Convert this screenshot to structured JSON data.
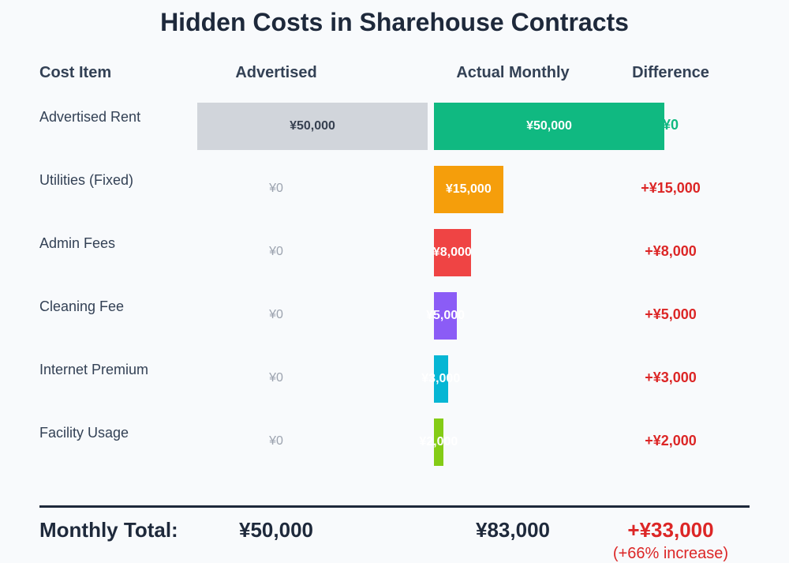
{
  "title": "Hidden Costs in Sharehouse Contracts",
  "headers": {
    "item": "Cost Item",
    "advertised": "Advertised",
    "actual": "Actual Monthly",
    "difference": "Difference"
  },
  "chart_data": {
    "type": "bar",
    "title": "Hidden Costs in Sharehouse Contracts",
    "categories": [
      "Advertised Rent",
      "Utilities (Fixed)",
      "Admin Fees",
      "Cleaning Fee",
      "Internet Premium",
      "Facility Usage"
    ],
    "series": [
      {
        "name": "Advertised",
        "values": [
          50000,
          0,
          0,
          0,
          0,
          0
        ],
        "labels": [
          "¥50,000",
          "¥0",
          "¥0",
          "¥0",
          "¥0",
          "¥0"
        ]
      },
      {
        "name": "Actual Monthly",
        "values": [
          50000,
          15000,
          8000,
          5000,
          3000,
          2000
        ],
        "labels": [
          "¥50,000",
          "¥15,000",
          "¥8,000",
          "¥5,000",
          "¥3,000",
          "¥2,000"
        ]
      }
    ],
    "differences": [
      "¥0",
      "+¥15,000",
      "+¥8,000",
      "+¥5,000",
      "+¥3,000",
      "+¥2,000"
    ],
    "colors": {
      "advertised": "#d1d5db",
      "actual": [
        "#10b981",
        "#f59e0b",
        "#ef4444",
        "#8b5cf6",
        "#06b6d4",
        "#84cc16"
      ],
      "zero_diff": "#10b981",
      "positive_diff": "#dc2626"
    }
  },
  "totals": {
    "label": "Monthly Total:",
    "advertised": "¥50,000",
    "actual": "¥83,000",
    "difference": "+¥33,000",
    "note": "(+66% increase)"
  }
}
